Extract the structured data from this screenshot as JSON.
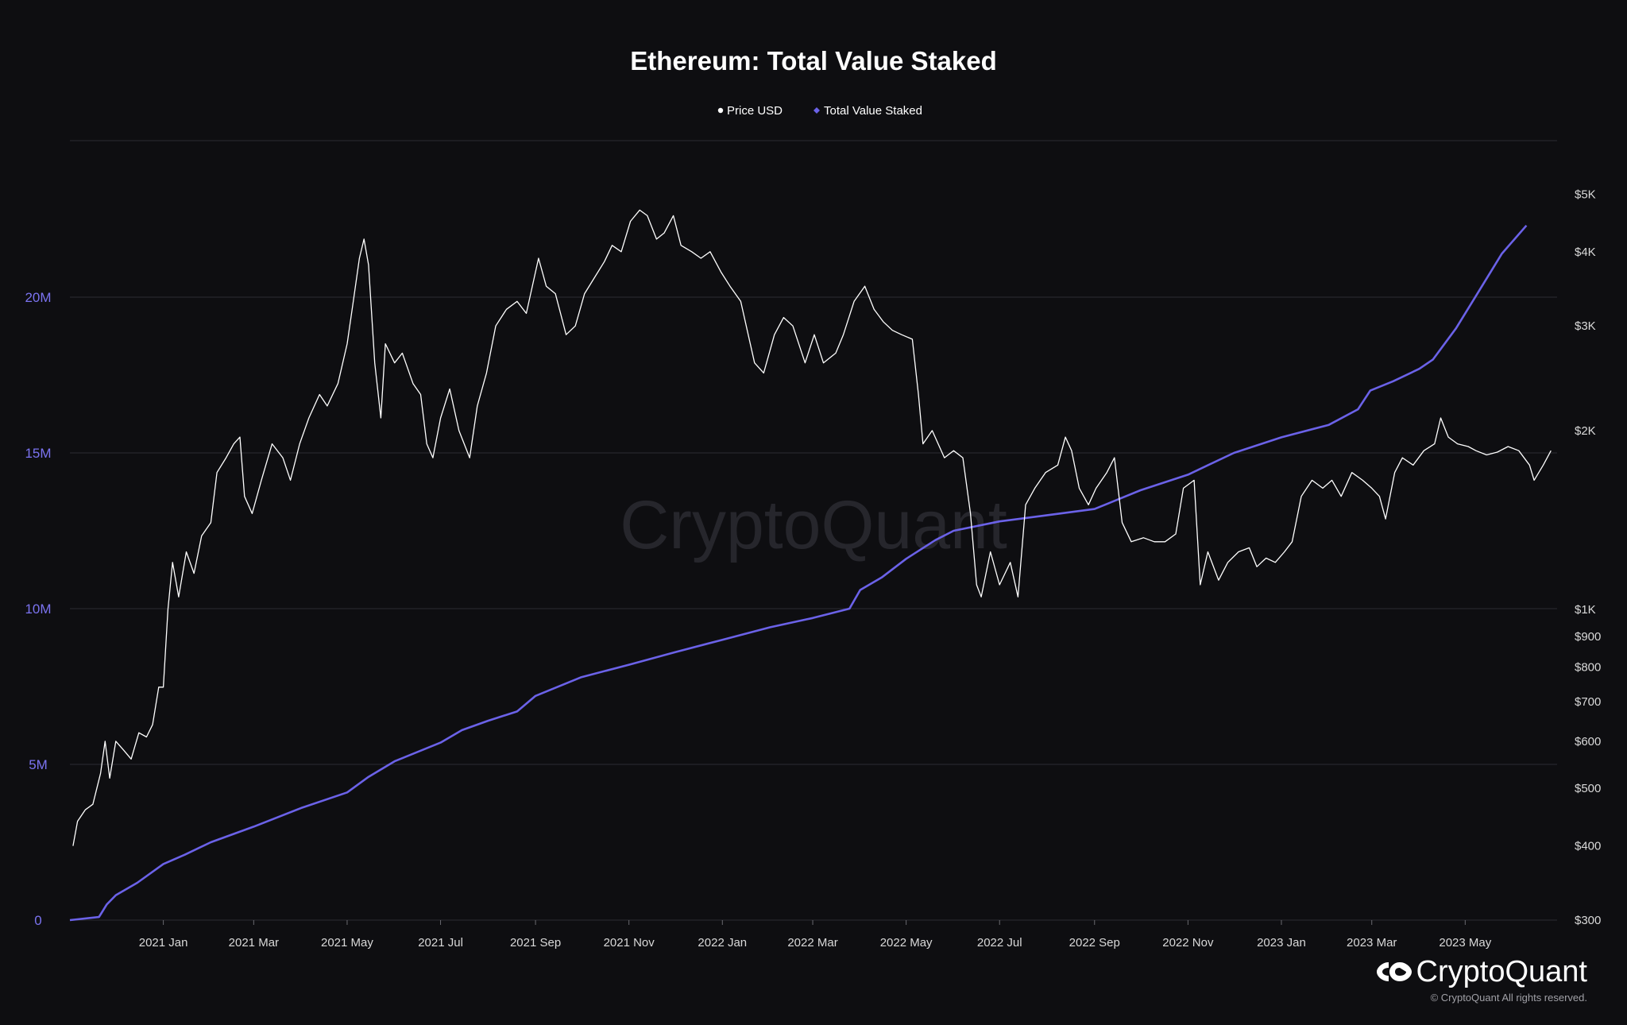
{
  "colors": {
    "background": "#0e0e11",
    "price_line": "#ffffff",
    "staked_line": "#6b62e8",
    "grid": "#2c2c32",
    "left_axis_text": "#7b73f0",
    "right_axis_text": "#d9d9d9"
  },
  "watermark": "CryptoQuant",
  "branding": {
    "logo_icon": "cryptoquant-logo-icon",
    "name": "CryptoQuant",
    "copyright": "© CryptoQuant All rights reserved."
  },
  "chart_data": {
    "type": "line",
    "title": "Ethereum: Total Value Staked",
    "legend": {
      "placement": "top-center",
      "entries": [
        "Price USD",
        "Total Value Staked"
      ]
    },
    "x": {
      "type": "date",
      "range": [
        "2020-11-01",
        "2023-06-30"
      ],
      "tick_labels": [
        "2021 Jan",
        "2021 Mar",
        "2021 May",
        "2021 Jul",
        "2021 Sep",
        "2021 Nov",
        "2022 Jan",
        "2022 Mar",
        "2022 May",
        "2022 Jul",
        "2022 Sep",
        "2022 Nov",
        "2023 Jan",
        "2023 Mar",
        "2023 May"
      ],
      "tick_dates": [
        "2021-01-01",
        "2021-03-01",
        "2021-05-01",
        "2021-07-01",
        "2021-09-01",
        "2021-11-01",
        "2022-01-01",
        "2022-03-01",
        "2022-05-01",
        "2022-07-01",
        "2022-09-01",
        "2022-11-01",
        "2023-01-01",
        "2023-03-01",
        "2023-05-01"
      ]
    },
    "y_left": {
      "series": "Total Value Staked",
      "scale": "linear",
      "ylim": [
        0,
        25000000
      ],
      "ticks": [
        0,
        5000000,
        10000000,
        15000000,
        20000000
      ],
      "tick_labels": [
        "0",
        "5M",
        "10M",
        "15M",
        "20M"
      ]
    },
    "y_right": {
      "series": "Price USD",
      "scale": "log",
      "ylim": [
        300,
        5000
      ],
      "ticks": [
        300,
        400,
        500,
        600,
        700,
        800,
        900,
        1000,
        2000,
        3000,
        4000,
        5000
      ],
      "tick_labels": [
        "$300",
        "$400",
        "$500",
        "$600",
        "$700",
        "$800",
        "$900",
        "$1K",
        "$2K",
        "$3K",
        "$4K",
        "$5K"
      ]
    },
    "grid": true,
    "series": [
      {
        "name": "Price USD",
        "axis": "right",
        "color": "#ffffff",
        "points": [
          [
            "2020-11-03",
            400
          ],
          [
            "2020-11-06",
            440
          ],
          [
            "2020-11-11",
            460
          ],
          [
            "2020-11-16",
            470
          ],
          [
            "2020-11-21",
            530
          ],
          [
            "2020-11-24",
            600
          ],
          [
            "2020-11-27",
            520
          ],
          [
            "2020-12-01",
            600
          ],
          [
            "2020-12-06",
            580
          ],
          [
            "2020-12-11",
            560
          ],
          [
            "2020-12-16",
            620
          ],
          [
            "2020-12-21",
            610
          ],
          [
            "2020-12-25",
            640
          ],
          [
            "2020-12-29",
            740
          ],
          [
            "2021-01-01",
            740
          ],
          [
            "2021-01-04",
            1000
          ],
          [
            "2021-01-07",
            1200
          ],
          [
            "2021-01-11",
            1050
          ],
          [
            "2021-01-16",
            1250
          ],
          [
            "2021-01-21",
            1150
          ],
          [
            "2021-01-26",
            1330
          ],
          [
            "2021-02-01",
            1400
          ],
          [
            "2021-02-05",
            1700
          ],
          [
            "2021-02-11",
            1800
          ],
          [
            "2021-02-16",
            1900
          ],
          [
            "2021-02-20",
            1950
          ],
          [
            "2021-02-23",
            1550
          ],
          [
            "2021-02-28",
            1450
          ],
          [
            "2021-03-06",
            1650
          ],
          [
            "2021-03-13",
            1900
          ],
          [
            "2021-03-20",
            1800
          ],
          [
            "2021-03-25",
            1650
          ],
          [
            "2021-03-31",
            1900
          ],
          [
            "2021-04-06",
            2100
          ],
          [
            "2021-04-13",
            2300
          ],
          [
            "2021-04-18",
            2200
          ],
          [
            "2021-04-25",
            2400
          ],
          [
            "2021-05-01",
            2800
          ],
          [
            "2021-05-05",
            3300
          ],
          [
            "2021-05-09",
            3900
          ],
          [
            "2021-05-12",
            4200
          ],
          [
            "2021-05-15",
            3800
          ],
          [
            "2021-05-19",
            2600
          ],
          [
            "2021-05-23",
            2100
          ],
          [
            "2021-05-26",
            2800
          ],
          [
            "2021-06-01",
            2600
          ],
          [
            "2021-06-06",
            2700
          ],
          [
            "2021-06-13",
            2400
          ],
          [
            "2021-06-18",
            2300
          ],
          [
            "2021-06-22",
            1900
          ],
          [
            "2021-06-26",
            1800
          ],
          [
            "2021-07-01",
            2100
          ],
          [
            "2021-07-07",
            2350
          ],
          [
            "2021-07-13",
            2000
          ],
          [
            "2021-07-20",
            1800
          ],
          [
            "2021-07-25",
            2200
          ],
          [
            "2021-07-31",
            2500
          ],
          [
            "2021-08-06",
            3000
          ],
          [
            "2021-08-13",
            3200
          ],
          [
            "2021-08-20",
            3300
          ],
          [
            "2021-08-26",
            3150
          ],
          [
            "2021-09-03",
            3900
          ],
          [
            "2021-09-08",
            3500
          ],
          [
            "2021-09-14",
            3400
          ],
          [
            "2021-09-21",
            2900
          ],
          [
            "2021-09-27",
            3000
          ],
          [
            "2021-10-03",
            3400
          ],
          [
            "2021-10-09",
            3600
          ],
          [
            "2021-10-16",
            3850
          ],
          [
            "2021-10-21",
            4100
          ],
          [
            "2021-10-27",
            4000
          ],
          [
            "2021-11-02",
            4500
          ],
          [
            "2021-11-08",
            4700
          ],
          [
            "2021-11-13",
            4600
          ],
          [
            "2021-11-19",
            4200
          ],
          [
            "2021-11-24",
            4300
          ],
          [
            "2021-11-30",
            4600
          ],
          [
            "2021-12-05",
            4100
          ],
          [
            "2021-12-12",
            4000
          ],
          [
            "2021-12-18",
            3900
          ],
          [
            "2021-12-24",
            4000
          ],
          [
            "2021-12-31",
            3700
          ],
          [
            "2022-01-06",
            3500
          ],
          [
            "2022-01-13",
            3300
          ],
          [
            "2022-01-22",
            2600
          ],
          [
            "2022-01-28",
            2500
          ],
          [
            "2022-02-04",
            2900
          ],
          [
            "2022-02-10",
            3100
          ],
          [
            "2022-02-16",
            3000
          ],
          [
            "2022-02-24",
            2600
          ],
          [
            "2022-03-02",
            2900
          ],
          [
            "2022-03-08",
            2600
          ],
          [
            "2022-03-16",
            2700
          ],
          [
            "2022-03-21",
            2900
          ],
          [
            "2022-03-28",
            3300
          ],
          [
            "2022-04-04",
            3500
          ],
          [
            "2022-04-10",
            3200
          ],
          [
            "2022-04-16",
            3050
          ],
          [
            "2022-04-22",
            2950
          ],
          [
            "2022-04-28",
            2900
          ],
          [
            "2022-05-05",
            2850
          ],
          [
            "2022-05-09",
            2300
          ],
          [
            "2022-05-12",
            1900
          ],
          [
            "2022-05-18",
            2000
          ],
          [
            "2022-05-26",
            1800
          ],
          [
            "2022-06-01",
            1850
          ],
          [
            "2022-06-07",
            1800
          ],
          [
            "2022-06-12",
            1450
          ],
          [
            "2022-06-16",
            1100
          ],
          [
            "2022-06-19",
            1050
          ],
          [
            "2022-06-25",
            1250
          ],
          [
            "2022-07-01",
            1100
          ],
          [
            "2022-07-08",
            1200
          ],
          [
            "2022-07-13",
            1050
          ],
          [
            "2022-07-18",
            1500
          ],
          [
            "2022-07-24",
            1600
          ],
          [
            "2022-07-31",
            1700
          ],
          [
            "2022-08-08",
            1750
          ],
          [
            "2022-08-13",
            1950
          ],
          [
            "2022-08-17",
            1850
          ],
          [
            "2022-08-22",
            1600
          ],
          [
            "2022-08-28",
            1500
          ],
          [
            "2022-09-02",
            1600
          ],
          [
            "2022-09-09",
            1700
          ],
          [
            "2022-09-14",
            1800
          ],
          [
            "2022-09-19",
            1400
          ],
          [
            "2022-09-25",
            1300
          ],
          [
            "2022-10-03",
            1320
          ],
          [
            "2022-10-10",
            1300
          ],
          [
            "2022-10-17",
            1300
          ],
          [
            "2022-10-24",
            1340
          ],
          [
            "2022-10-29",
            1600
          ],
          [
            "2022-11-05",
            1650
          ],
          [
            "2022-11-09",
            1100
          ],
          [
            "2022-11-14",
            1250
          ],
          [
            "2022-11-21",
            1120
          ],
          [
            "2022-11-27",
            1200
          ],
          [
            "2022-12-04",
            1250
          ],
          [
            "2022-12-11",
            1270
          ],
          [
            "2022-12-16",
            1180
          ],
          [
            "2022-12-22",
            1220
          ],
          [
            "2022-12-28",
            1200
          ],
          [
            "2023-01-03",
            1250
          ],
          [
            "2023-01-08",
            1300
          ],
          [
            "2023-01-14",
            1550
          ],
          [
            "2023-01-21",
            1650
          ],
          [
            "2023-01-28",
            1600
          ],
          [
            "2023-02-03",
            1650
          ],
          [
            "2023-02-09",
            1550
          ],
          [
            "2023-02-16",
            1700
          ],
          [
            "2023-02-23",
            1650
          ],
          [
            "2023-03-01",
            1600
          ],
          [
            "2023-03-06",
            1550
          ],
          [
            "2023-03-10",
            1420
          ],
          [
            "2023-03-16",
            1700
          ],
          [
            "2023-03-21",
            1800
          ],
          [
            "2023-03-28",
            1750
          ],
          [
            "2023-04-04",
            1850
          ],
          [
            "2023-04-11",
            1900
          ],
          [
            "2023-04-15",
            2100
          ],
          [
            "2023-04-20",
            1950
          ],
          [
            "2023-04-26",
            1900
          ],
          [
            "2023-05-03",
            1880
          ],
          [
            "2023-05-08",
            1850
          ],
          [
            "2023-05-15",
            1820
          ],
          [
            "2023-05-22",
            1840
          ],
          [
            "2023-05-29",
            1880
          ],
          [
            "2023-06-05",
            1850
          ],
          [
            "2023-06-12",
            1750
          ],
          [
            "2023-06-15",
            1650
          ],
          [
            "2023-06-21",
            1750
          ],
          [
            "2023-06-26",
            1850
          ]
        ]
      },
      {
        "name": "Total Value Staked",
        "axis": "left",
        "color": "#6b62e8",
        "points": [
          [
            "2020-11-01",
            0
          ],
          [
            "2020-11-20",
            100000
          ],
          [
            "2020-11-25",
            500000
          ],
          [
            "2020-12-01",
            800000
          ],
          [
            "2020-12-15",
            1200000
          ],
          [
            "2021-01-01",
            1800000
          ],
          [
            "2021-01-15",
            2100000
          ],
          [
            "2021-02-01",
            2500000
          ],
          [
            "2021-03-01",
            3000000
          ],
          [
            "2021-04-01",
            3600000
          ],
          [
            "2021-05-01",
            4100000
          ],
          [
            "2021-05-15",
            4600000
          ],
          [
            "2021-06-01",
            5100000
          ],
          [
            "2021-07-01",
            5700000
          ],
          [
            "2021-07-15",
            6100000
          ],
          [
            "2021-08-01",
            6400000
          ],
          [
            "2021-08-20",
            6700000
          ],
          [
            "2021-09-01",
            7200000
          ],
          [
            "2021-10-01",
            7800000
          ],
          [
            "2021-11-01",
            8200000
          ],
          [
            "2021-12-01",
            8600000
          ],
          [
            "2022-01-01",
            9000000
          ],
          [
            "2022-02-01",
            9400000
          ],
          [
            "2022-03-01",
            9700000
          ],
          [
            "2022-03-25",
            10000000
          ],
          [
            "2022-04-01",
            10600000
          ],
          [
            "2022-04-15",
            11000000
          ],
          [
            "2022-05-01",
            11600000
          ],
          [
            "2022-05-20",
            12200000
          ],
          [
            "2022-06-01",
            12500000
          ],
          [
            "2022-07-01",
            12800000
          ],
          [
            "2022-08-01",
            13000000
          ],
          [
            "2022-09-01",
            13200000
          ],
          [
            "2022-10-01",
            13800000
          ],
          [
            "2022-11-01",
            14300000
          ],
          [
            "2022-12-01",
            15000000
          ],
          [
            "2023-01-01",
            15500000
          ],
          [
            "2023-02-01",
            15900000
          ],
          [
            "2023-02-20",
            16400000
          ],
          [
            "2023-02-28",
            17000000
          ],
          [
            "2023-03-15",
            17300000
          ],
          [
            "2023-04-01",
            17700000
          ],
          [
            "2023-04-10",
            18000000
          ],
          [
            "2023-04-25",
            19000000
          ],
          [
            "2023-05-10",
            20200000
          ],
          [
            "2023-05-25",
            21400000
          ],
          [
            "2023-06-10",
            22300000
          ]
        ]
      }
    ]
  }
}
